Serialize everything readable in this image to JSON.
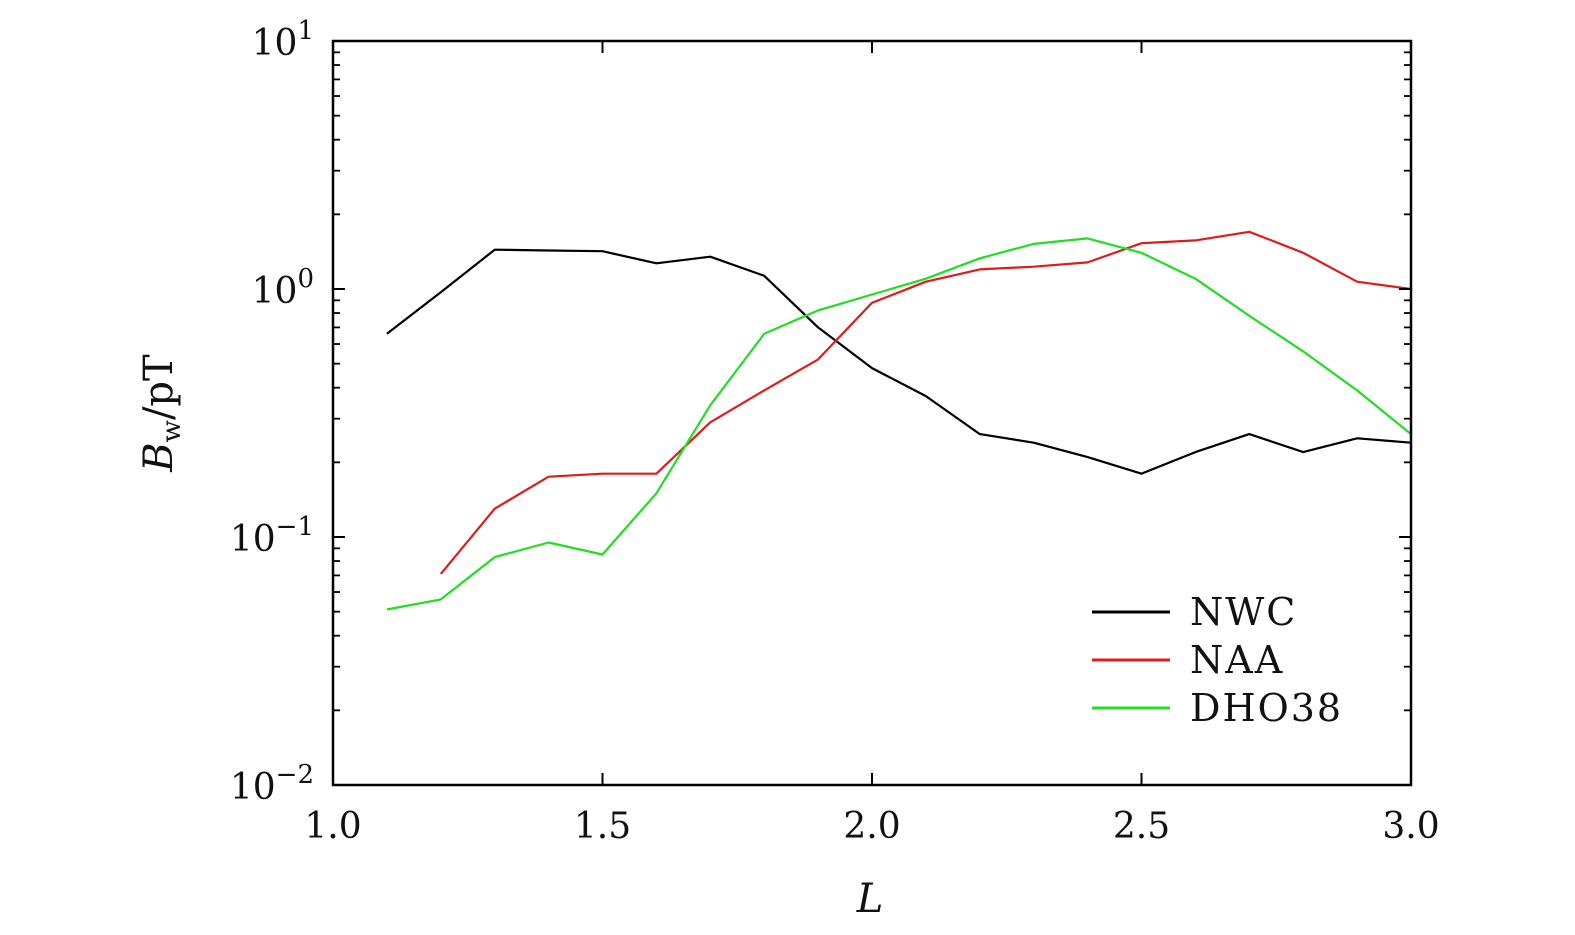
{
  "chart_data": {
    "type": "line",
    "title": "",
    "xlabel": "L",
    "ylabel": {
      "main": "B",
      "sub": "w",
      "unit": "/pT"
    },
    "xlim": [
      1.0,
      3.0
    ],
    "ylim": [
      0.01,
      10
    ],
    "yscale": "log",
    "x_ticks": [
      "1.0",
      "1.5",
      "2.0",
      "2.5",
      "3.0"
    ],
    "y_ticks": [
      {
        "base": "10",
        "exp": "1"
      },
      {
        "base": "10",
        "exp": "0"
      },
      {
        "base": "10",
        "exp": "−1"
      },
      {
        "base": "10",
        "exp": "−2"
      }
    ],
    "grid": false,
    "legend_position": "bottom-right",
    "series": [
      {
        "name": "NWC",
        "color": "#000000",
        "x": [
          1.1,
          1.2,
          1.3,
          1.4,
          1.5,
          1.6,
          1.7,
          1.8,
          1.9,
          2.0,
          2.1,
          2.2,
          2.3,
          2.4,
          2.5,
          2.6,
          2.7,
          2.8,
          2.9,
          3.0
        ],
        "y": [
          0.66,
          0.97,
          1.44,
          1.43,
          1.42,
          1.27,
          1.35,
          1.13,
          0.7,
          0.48,
          0.37,
          0.26,
          0.24,
          0.21,
          0.18,
          0.22,
          0.26,
          0.22,
          0.25,
          0.24
        ]
      },
      {
        "name": "NAA",
        "color": "#dd1c1c",
        "x": [
          1.2,
          1.3,
          1.4,
          1.5,
          1.6,
          1.7,
          1.8,
          1.9,
          2.0,
          2.1,
          2.2,
          2.3,
          2.4,
          2.5,
          2.6,
          2.7,
          2.8,
          2.9,
          3.0
        ],
        "y": [
          0.071,
          0.13,
          0.175,
          0.18,
          0.18,
          0.29,
          0.39,
          0.52,
          0.88,
          1.07,
          1.2,
          1.23,
          1.28,
          1.53,
          1.57,
          1.7,
          1.4,
          1.07,
          1.0
        ]
      },
      {
        "name": "DHO38",
        "color": "#22dd22",
        "x": [
          1.1,
          1.2,
          1.3,
          1.4,
          1.5,
          1.6,
          1.7,
          1.8,
          1.9,
          2.0,
          2.1,
          2.2,
          2.3,
          2.4,
          2.5,
          2.6,
          2.7,
          2.8,
          2.9,
          3.0
        ],
        "y": [
          0.051,
          0.056,
          0.083,
          0.095,
          0.085,
          0.15,
          0.34,
          0.66,
          0.82,
          0.95,
          1.1,
          1.33,
          1.52,
          1.6,
          1.4,
          1.1,
          0.78,
          0.56,
          0.39,
          0.26
        ]
      }
    ]
  }
}
